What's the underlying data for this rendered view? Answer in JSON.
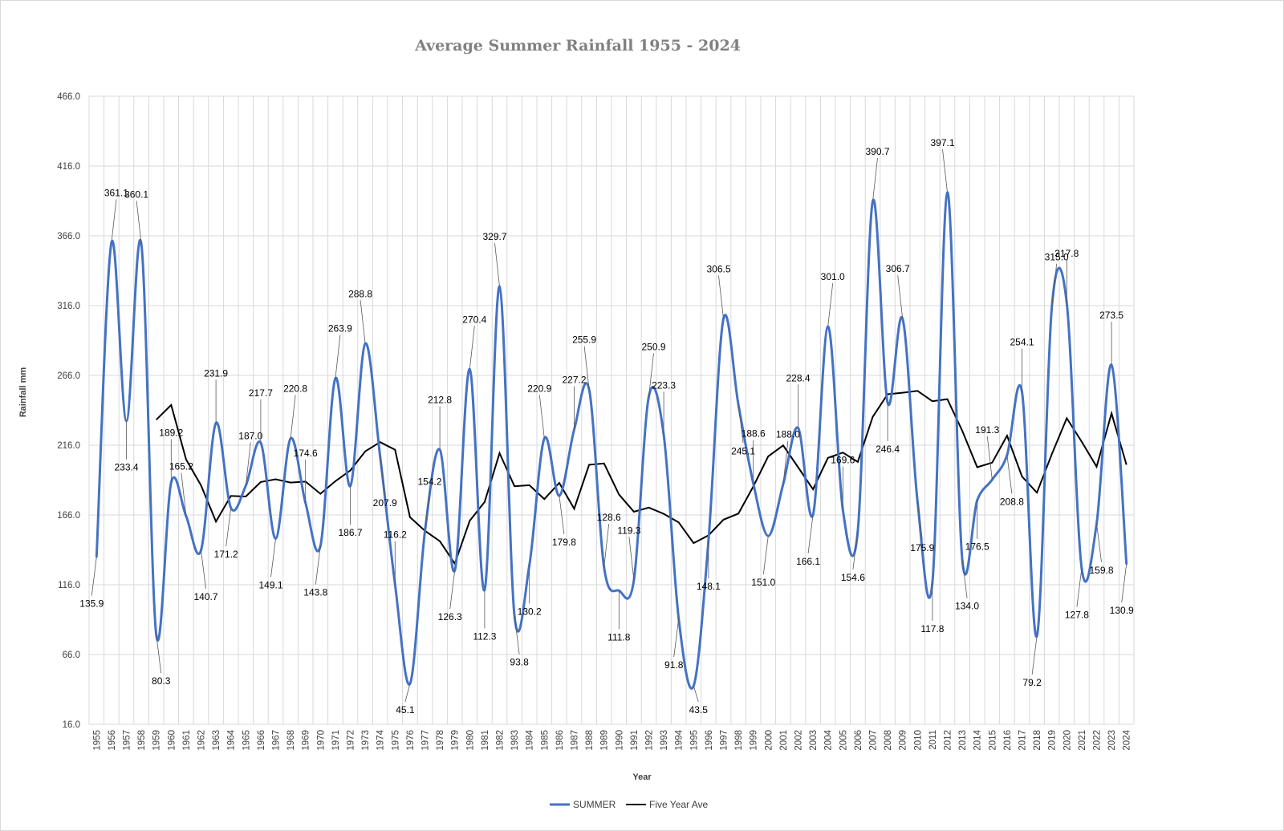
{
  "chart_data": {
    "type": "line",
    "title": "Average Summer Rainfall  1955 - 2024",
    "xlabel": "Year",
    "ylabel": "Rainfall mm",
    "ylim": [
      16.0,
      466.0
    ],
    "y_ticks": [
      "16.0",
      "66.0",
      "116.0",
      "166.0",
      "216.0",
      "266.0",
      "316.0",
      "366.0",
      "416.0",
      "466.0"
    ],
    "grid": true,
    "legend_position": "bottom",
    "categories": [
      "1955",
      "1956",
      "1957",
      "1958",
      "1959",
      "1960",
      "1961",
      "1962",
      "1963",
      "1964",
      "1965",
      "1966",
      "1967",
      "1968",
      "1969",
      "1970",
      "1971",
      "1972",
      "1973",
      "1974",
      "1975",
      "1976",
      "1977",
      "1978",
      "1979",
      "1980",
      "1981",
      "1982",
      "1983",
      "1984",
      "1985",
      "1986",
      "1987",
      "1988",
      "1989",
      "1990",
      "1991",
      "1992",
      "1993",
      "1994",
      "1995",
      "1996",
      "1997",
      "1998",
      "1999",
      "2000",
      "2001",
      "2002",
      "2003",
      "2004",
      "2005",
      "2006",
      "2007",
      "2008",
      "2009",
      "2010",
      "2011",
      "2012",
      "2013",
      "2014",
      "2015",
      "2016",
      "2017",
      "2018",
      "2019",
      "2020",
      "2021",
      "2022",
      "2023",
      "2024"
    ],
    "series": [
      {
        "name": "SUMMER",
        "color": "#4472C4",
        "values": [
          135.9,
          361.1,
          233.4,
          360.1,
          80.3,
          189.2,
          165.2,
          140.7,
          231.9,
          171.2,
          187.0,
          217.7,
          149.1,
          220.8,
          174.6,
          143.8,
          263.9,
          186.7,
          288.8,
          207.9,
          116.2,
          45.1,
          154.2,
          212.8,
          126.3,
          270.4,
          112.3,
          329.7,
          93.8,
          130.2,
          220.9,
          179.8,
          227.2,
          255.9,
          128.6,
          111.8,
          119.3,
          250.9,
          223.3,
          91.8,
          43.5,
          148.1,
          306.5,
          245.1,
          188.6,
          151.0,
          188.0,
          228.4,
          166.1,
          301.0,
          169.6,
          154.6,
          390.7,
          246.4,
          306.7,
          175.9,
          117.8,
          397.1,
          134.0,
          176.5,
          191.3,
          208.8,
          254.1,
          79.2,
          315.0,
          317.8,
          127.8,
          159.8,
          273.5,
          130.9
        ],
        "labels": [
          "135.9",
          "361.1",
          "233.4",
          "360.1",
          "80.3",
          "189.2",
          "165.2",
          "140.7",
          "231.9",
          "171.2",
          "187.0",
          "217.7",
          "149.1",
          "220.8",
          "174.6",
          "143.8",
          "263.9",
          "186.7",
          "288.8",
          "207.9",
          "116.2",
          "45.1",
          "154.2",
          "212.8",
          "126.3",
          "270.4",
          "112.3",
          "329.7",
          "93.8",
          "130.2",
          "220.9",
          "179.8",
          "227.2",
          "255.9",
          "128.6",
          "111.8",
          "119.3",
          "250.9",
          "223.3",
          "91.8",
          "43.5",
          "148.1",
          "306.5",
          "245.1",
          "188.6",
          "151.0",
          "188.0",
          "228.4",
          "166.1",
          "301.0",
          "169.6",
          "154.6",
          "390.7",
          "246.4",
          "306.7",
          "175.9",
          "117.8",
          "397.1",
          "134.0",
          "176.5",
          "191.3",
          "208.8",
          "254.1",
          "79.2",
          "315.0",
          "317.8",
          "127.8",
          "159.8",
          "273.5",
          "130.9"
        ]
      },
      {
        "name": "Five Year Ave",
        "color": "#000000",
        "values": [
          null,
          null,
          null,
          null,
          234.2,
          244.8,
          205.7,
          187.2,
          161.3,
          179.6,
          179.2,
          189.6,
          191.6,
          189.2,
          189.9,
          181.2,
          190.2,
          197.9,
          211.6,
          218.2,
          212.7,
          164.4,
          154.7,
          147.2,
          131.1,
          161.8,
          175.3,
          210.3,
          186.6,
          187.3,
          177.4,
          189.0,
          170.4,
          202.0,
          202.9,
          180.7,
          168.3,
          171.3,
          166.8,
          160.7,
          145.8,
          151.4,
          162.6,
          167.0,
          186.4,
          208.0,
          215.8,
          200.2,
          184.4,
          206.9,
          210.7,
          204.0,
          236.3,
          252.5,
          253.6,
          254.9,
          247.5,
          249.0,
          226.3,
          200.2,
          203.5,
          222.8,
          193.6,
          182.0,
          209.6,
          235.3,
          218.5,
          200.6,
          238.8,
          202.0
        ]
      }
    ]
  }
}
